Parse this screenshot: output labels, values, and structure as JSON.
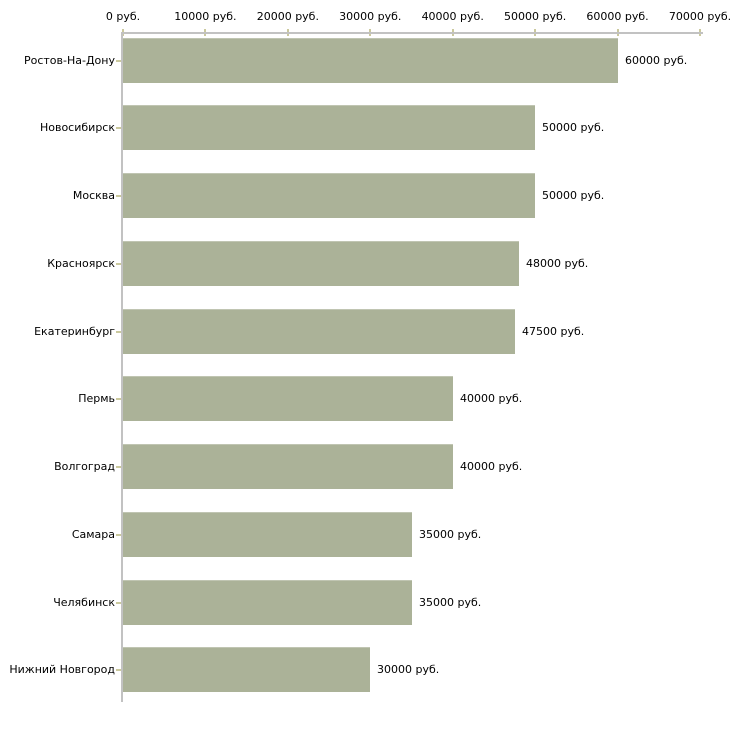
{
  "chart_data": {
    "type": "bar",
    "orientation": "horizontal",
    "title": "",
    "xlabel": "",
    "ylabel": "",
    "unit": "руб.",
    "categories": [
      "Ростов-На-Дону",
      "Новосибирск",
      "Москва",
      "Красноярск",
      "Екатеринбург",
      "Пермь",
      "Волгоград",
      "Самара",
      "Челябинск",
      "Нижний Новгород"
    ],
    "values": [
      60000,
      50000,
      50000,
      48000,
      47500,
      40000,
      40000,
      35000,
      35000,
      30000
    ],
    "value_labels": [
      "60000 руб.",
      "50000 руб.",
      "50000 руб.",
      "48000 руб.",
      "47500 руб.",
      "40000 руб.",
      "40000 руб.",
      "35000 руб.",
      "35000 руб.",
      "30000 руб."
    ],
    "xlim": [
      0,
      70000
    ],
    "x_ticks": [
      0,
      10000,
      20000,
      30000,
      40000,
      50000,
      60000,
      70000
    ],
    "x_tick_labels": [
      "0 руб.",
      "10000 руб.",
      "20000 руб.",
      "30000 руб.",
      "40000 руб.",
      "50000 руб.",
      "60000 руб.",
      "70000 руб."
    ],
    "axis_position": "top",
    "grid": false,
    "legend": false,
    "colors": {
      "bar": "#abb298",
      "axis": "#c2c2c2",
      "tick": "#cbc99e",
      "text": "#000000",
      "background": "#ffffff"
    }
  }
}
